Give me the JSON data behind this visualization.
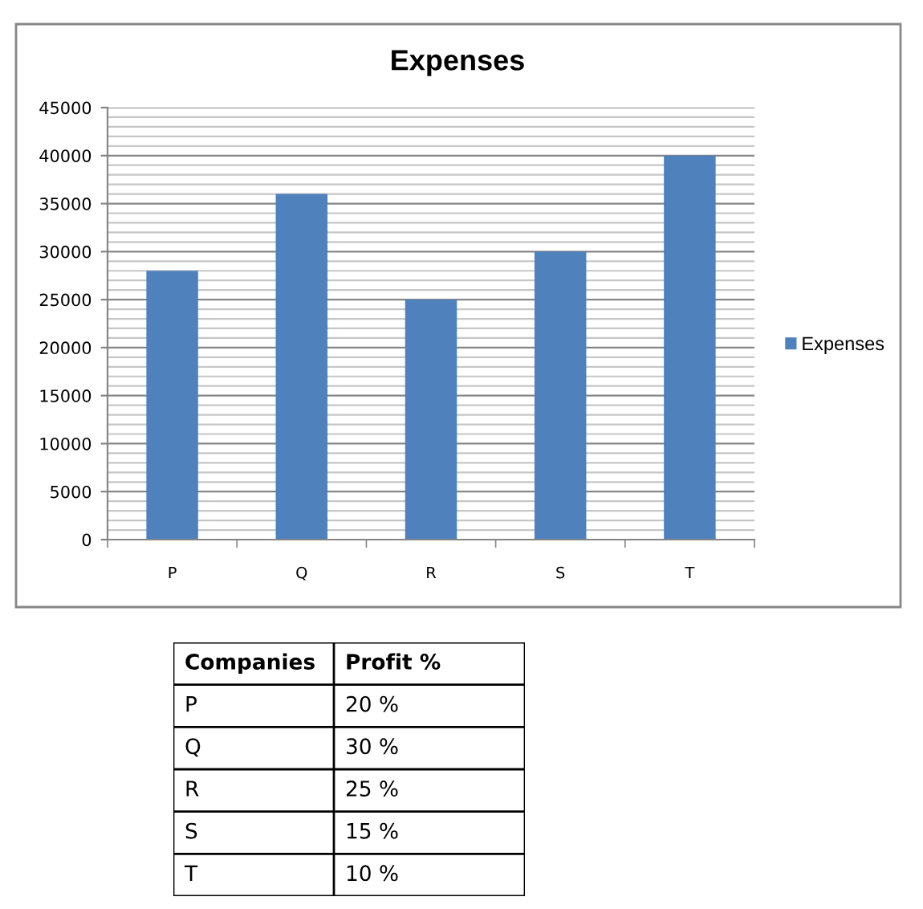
{
  "chart_data": [
    {
      "type": "bar",
      "title": "Expenses",
      "categories": [
        "P",
        "Q",
        "R",
        "S",
        "T"
      ],
      "series": [
        {
          "name": "Expenses",
          "color": "#4f81bd",
          "values": [
            28000,
            36000,
            25000,
            30000,
            40000
          ]
        }
      ],
      "ylim": [
        0,
        45000
      ],
      "yticks": [
        0,
        {
          "value": 1000,
          "label": null
        },
        {
          "value": 2000,
          "label": null
        },
        {
          "value": 3000,
          "label": null
        },
        {
          "value": 4000,
          "label": null
        },
        5000,
        {
          "value": 6000,
          "label": null
        },
        {
          "value": 7000,
          "label": null
        },
        {
          "value": 8000,
          "label": null
        },
        {
          "value": 9000,
          "label": null
        },
        10000,
        {
          "value": 11000,
          "label": null
        },
        {
          "value": 12000,
          "label": null
        },
        {
          "value": 13000,
          "label": null
        },
        {
          "value": 14000,
          "label": null
        },
        15000,
        {
          "value": 16000,
          "label": null
        },
        {
          "value": 17000,
          "label": null
        },
        {
          "value": 18000,
          "label": null
        },
        {
          "value": 19000,
          "label": null
        },
        20000,
        {
          "value": 21000,
          "label": null
        },
        {
          "value": 22000,
          "label": null
        },
        {
          "value": 23000,
          "label": null
        },
        {
          "value": 24000,
          "label": null
        },
        25000,
        {
          "value": 26000,
          "label": null
        },
        {
          "value": 27000,
          "label": null
        },
        {
          "value": 28000,
          "label": null
        },
        {
          "value": 29000,
          "label": null
        },
        30000,
        {
          "value": 31000,
          "label": null
        },
        {
          "value": 32000,
          "label": null
        },
        {
          "value": 33000,
          "label": null
        },
        {
          "value": 34000,
          "label": null
        },
        35000,
        {
          "value": 36000,
          "label": null
        },
        {
          "value": 37000,
          "label": null
        },
        {
          "value": 38000,
          "label": null
        },
        {
          "value": 39000,
          "label": null
        },
        40000,
        {
          "value": 41000,
          "label": null
        },
        {
          "value": 42000,
          "label": null
        },
        {
          "value": 43000,
          "label": null
        },
        {
          "value": 44000,
          "label": null
        },
        45000
      ],
      "grid": "y",
      "legend": "right"
    },
    {
      "type": "other",
      "xlabel": "Companies",
      "ylabel": "Profit %",
      "categories": [
        "P",
        "Q",
        "R",
        "S",
        "T"
      ],
      "value_labels": [
        "20 %",
        "30 %",
        "25 %",
        "15 %",
        "10 %"
      ]
    }
  ]
}
